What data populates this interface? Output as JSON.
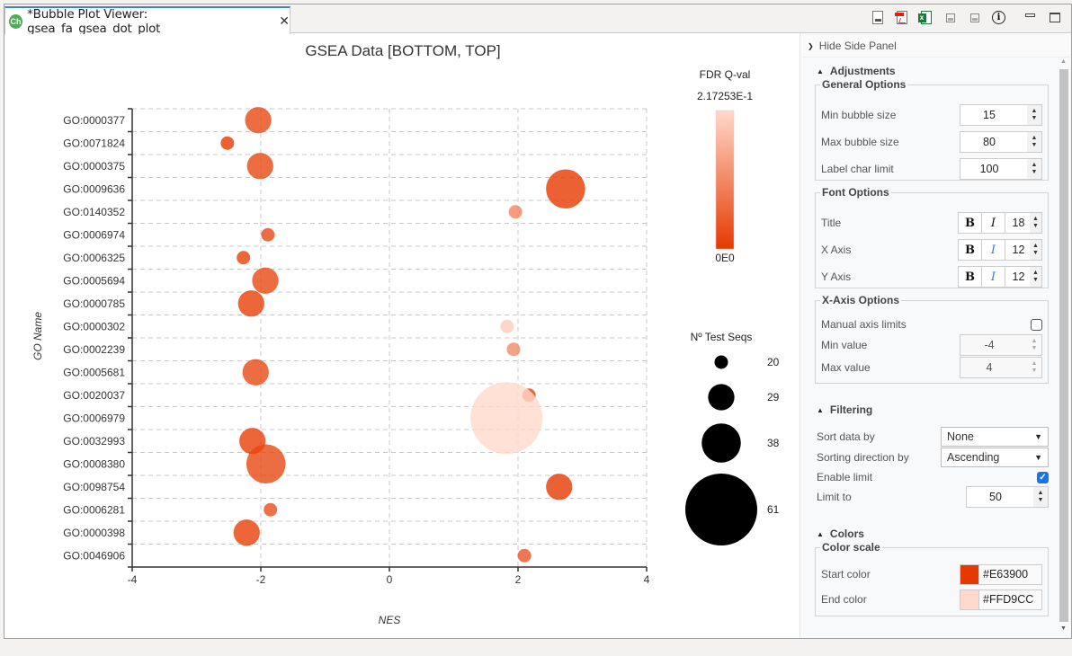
{
  "tab": {
    "icon_text": "Ch",
    "title": "*Bubble Plot Viewer: gsea_fa_gsea_dot_plot",
    "close_icon": "close-icon"
  },
  "toolbar": {
    "icons": [
      "export-image-icon",
      "export-pdf-icon",
      "export-excel-icon",
      "save-icon",
      "save-as-icon",
      "info-icon",
      "minimize-icon",
      "maximize-icon"
    ],
    "info_glyph": "i"
  },
  "chart_data": {
    "type": "scatter",
    "subtype": "bubble",
    "title": "GSEA Data [BOTTOM, TOP]",
    "xlabel": "NES",
    "ylabel": "GO Name",
    "xlim": [
      -4,
      4
    ],
    "xticks": [
      -4,
      -2,
      0,
      2,
      4
    ],
    "x_tick_labels": [
      "-4",
      "-2",
      "0",
      "2",
      "4"
    ],
    "grid": true,
    "categories": [
      "GO:0000377",
      "GO:0071824",
      "GO:0000375",
      "GO:0009636",
      "GO:0140352",
      "GO:0006974",
      "GO:0006325",
      "GO:0005694",
      "GO:0000785",
      "GO:0000302",
      "GO:0002239",
      "GO:0005681",
      "GO:0020037",
      "GO:0006979",
      "GO:0032993",
      "GO:0008380",
      "GO:0098754",
      "GO:0006281",
      "GO:0000398",
      "GO:0046906"
    ],
    "points": [
      {
        "go": "GO:0000377",
        "nes": -2.04,
        "size": 29,
        "fdr": 0.02
      },
      {
        "go": "GO:0071824",
        "nes": -2.52,
        "size": 20,
        "fdr": 0.0
      },
      {
        "go": "GO:0000375",
        "nes": -2.01,
        "size": 29,
        "fdr": 0.02
      },
      {
        "go": "GO:0009636",
        "nes": 2.74,
        "size": 38,
        "fdr": 0.0
      },
      {
        "go": "GO:0140352",
        "nes": 1.96,
        "size": 20,
        "fdr": 0.1
      },
      {
        "go": "GO:0006974",
        "nes": -1.89,
        "size": 20,
        "fdr": 0.02
      },
      {
        "go": "GO:0006325",
        "nes": -2.27,
        "size": 20,
        "fdr": 0.01
      },
      {
        "go": "GO:0005694",
        "nes": -1.93,
        "size": 29,
        "fdr": 0.02
      },
      {
        "go": "GO:0000785",
        "nes": -2.15,
        "size": 29,
        "fdr": 0.01
      },
      {
        "go": "GO:0000302",
        "nes": 1.83,
        "size": 20,
        "fdr": 0.2
      },
      {
        "go": "GO:0002239",
        "nes": 1.93,
        "size": 20,
        "fdr": 0.11
      },
      {
        "go": "GO:0005681",
        "nes": -2.08,
        "size": 29,
        "fdr": 0.02
      },
      {
        "go": "GO:0020037",
        "nes": 2.17,
        "size": 20,
        "fdr": 0.01
      },
      {
        "go": "GO:0006979",
        "nes": 1.82,
        "size": 61,
        "fdr": 0.217253
      },
      {
        "go": "GO:0032993",
        "nes": -2.13,
        "size": 29,
        "fdr": 0.01
      },
      {
        "go": "GO:0008380",
        "nes": -1.92,
        "size": 38,
        "fdr": 0.02
      },
      {
        "go": "GO:0098754",
        "nes": 2.64,
        "size": 29,
        "fdr": 0.0
      },
      {
        "go": "GO:0006281",
        "nes": -1.85,
        "size": 20,
        "fdr": 0.03
      },
      {
        "go": "GO:0000398",
        "nes": -2.22,
        "size": 29,
        "fdr": 0.01
      },
      {
        "go": "GO:0046906",
        "nes": 2.1,
        "size": 20,
        "fdr": 0.04
      }
    ],
    "color_legend": {
      "title": "FDR Q-val",
      "max_label": "2.17253E-1",
      "min_label": "0E0",
      "max": 0.217253,
      "min": 0,
      "start_color": "#E63900",
      "end_color": "#FFD9CC"
    },
    "size_legend": {
      "title": "Nº Test Seqs",
      "entries": [
        20,
        29,
        38,
        61
      ],
      "labels": [
        "20",
        "29",
        "38",
        "61"
      ]
    }
  },
  "side_panel": {
    "hide_label": "Hide Side Panel",
    "adjustments": {
      "title": "Adjustments",
      "general": {
        "legend": "General Options",
        "min_bubble_label": "Min bubble size",
        "min_bubble_value": "15",
        "max_bubble_label": "Max bubble size",
        "max_bubble_value": "80",
        "char_limit_label": "Label char limit",
        "char_limit_value": "100"
      },
      "font": {
        "legend": "Font Options",
        "bold_glyph": "B",
        "italic_glyph": "I",
        "rows": [
          {
            "label": "Title",
            "bold": true,
            "italic": false,
            "size": "18"
          },
          {
            "label": "X Axis",
            "bold": true,
            "italic": true,
            "size": "12"
          },
          {
            "label": "Y Axis",
            "bold": true,
            "italic": true,
            "size": "12"
          }
        ]
      },
      "xaxis": {
        "legend": "X-Axis Options",
        "manual_label": "Manual axis limits",
        "manual_checked": false,
        "min_label": "Min value",
        "min_value": "-4",
        "max_label": "Max value",
        "max_value": "4"
      }
    },
    "filtering": {
      "title": "Filtering",
      "sort_label": "Sort data by",
      "sort_value": "None",
      "direction_label": "Sorting direction by",
      "direction_value": "Ascending",
      "enable_limit_label": "Enable limit",
      "enable_limit_checked": true,
      "limit_label": "Limit to",
      "limit_value": "50"
    },
    "colors": {
      "title": "Colors",
      "legend": "Color scale",
      "start_label": "Start color",
      "start_value": "#E63900",
      "end_label": "End color",
      "end_value": "#FFD9CC"
    }
  }
}
